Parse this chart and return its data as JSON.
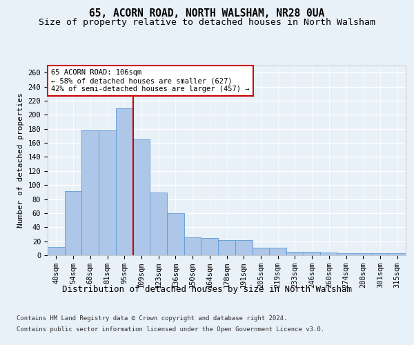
{
  "title": "65, ACORN ROAD, NORTH WALSHAM, NR28 0UA",
  "subtitle": "Size of property relative to detached houses in North Walsham",
  "xlabel": "Distribution of detached houses by size in North Walsham",
  "ylabel": "Number of detached properties",
  "categories": [
    "40sqm",
    "54sqm",
    "68sqm",
    "81sqm",
    "95sqm",
    "109sqm",
    "123sqm",
    "136sqm",
    "150sqm",
    "164sqm",
    "178sqm",
    "191sqm",
    "205sqm",
    "219sqm",
    "233sqm",
    "246sqm",
    "260sqm",
    "274sqm",
    "288sqm",
    "301sqm",
    "315sqm"
  ],
  "values": [
    12,
    91,
    179,
    179,
    209,
    165,
    89,
    60,
    26,
    25,
    22,
    22,
    11,
    11,
    5,
    5,
    4,
    3,
    3,
    3,
    3
  ],
  "bar_color": "#aec6e8",
  "bar_edge_color": "#5b9bd5",
  "vline_index": 5,
  "vline_color": "#cc0000",
  "annotation_text": "65 ACORN ROAD: 106sqm\n← 58% of detached houses are smaller (627)\n42% of semi-detached houses are larger (457) →",
  "annotation_box_color": "#ffffff",
  "annotation_box_edge_color": "#cc0000",
  "ylim": [
    0,
    270
  ],
  "yticks": [
    0,
    20,
    40,
    60,
    80,
    100,
    120,
    140,
    160,
    180,
    200,
    220,
    240,
    260
  ],
  "background_color": "#e8f0f8",
  "plot_background_color": "#e8f0f8",
  "grid_color": "#ffffff",
  "footer_line1": "Contains HM Land Registry data © Crown copyright and database right 2024.",
  "footer_line2": "Contains public sector information licensed under the Open Government Licence v3.0.",
  "title_fontsize": 10.5,
  "subtitle_fontsize": 9.5,
  "xlabel_fontsize": 9,
  "ylabel_fontsize": 8,
  "tick_fontsize": 7.5,
  "footer_fontsize": 6.5,
  "annotation_fontsize": 7.5
}
